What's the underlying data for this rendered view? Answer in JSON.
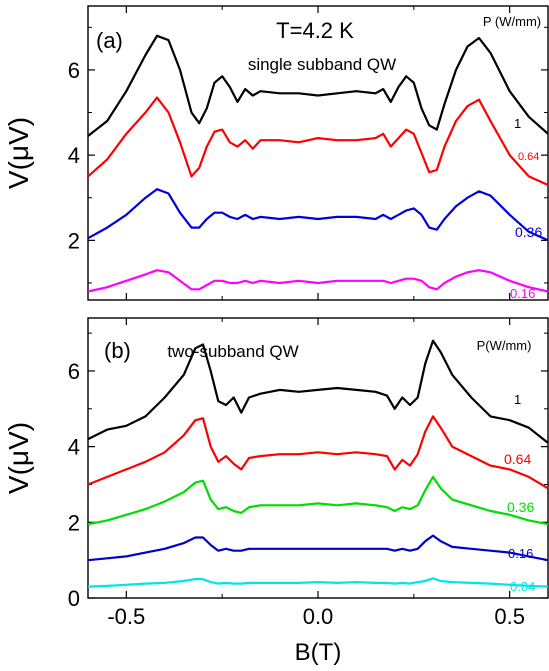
{
  "chart_data": [
    {
      "type": "line",
      "panel_label": "(a)",
      "title": "T=4.2 K",
      "subtitle": "single subband QW",
      "legend_title": "P (W/mm)",
      "xlabel": "",
      "ylabel": "V(μV)",
      "xlim": [
        -0.6,
        0.6
      ],
      "ylim": [
        0.6,
        7.5
      ],
      "yticks": [
        "2",
        "4",
        "6"
      ],
      "ytick_values": [
        2,
        4,
        6
      ],
      "grid": false,
      "series": [
        {
          "name": "1",
          "color": "#000000",
          "x": [
            -0.6,
            -0.55,
            -0.5,
            -0.45,
            -0.42,
            -0.39,
            -0.36,
            -0.33,
            -0.31,
            -0.29,
            -0.27,
            -0.25,
            -0.23,
            -0.21,
            -0.19,
            -0.17,
            -0.15,
            -0.1,
            -0.05,
            0.0,
            0.05,
            0.1,
            0.15,
            0.17,
            0.19,
            0.21,
            0.23,
            0.25,
            0.27,
            0.29,
            0.31,
            0.33,
            0.36,
            0.39,
            0.42,
            0.45,
            0.5,
            0.55,
            0.6
          ],
          "y": [
            4.45,
            4.8,
            5.5,
            6.35,
            6.8,
            6.7,
            6.0,
            5.0,
            4.75,
            5.1,
            5.7,
            5.85,
            5.6,
            5.25,
            5.55,
            5.4,
            5.5,
            5.45,
            5.45,
            5.4,
            5.45,
            5.5,
            5.45,
            5.55,
            5.25,
            5.6,
            5.85,
            5.7,
            5.1,
            4.7,
            4.6,
            5.2,
            6.0,
            6.55,
            6.75,
            6.4,
            5.5,
            4.9,
            4.5
          ]
        },
        {
          "name": "0.64",
          "color": "#ff0000",
          "x": [
            -0.6,
            -0.55,
            -0.5,
            -0.45,
            -0.42,
            -0.39,
            -0.36,
            -0.33,
            -0.31,
            -0.29,
            -0.27,
            -0.25,
            -0.23,
            -0.21,
            -0.19,
            -0.17,
            -0.15,
            -0.1,
            -0.05,
            0.0,
            0.05,
            0.1,
            0.15,
            0.17,
            0.19,
            0.21,
            0.23,
            0.25,
            0.27,
            0.29,
            0.31,
            0.33,
            0.36,
            0.39,
            0.42,
            0.45,
            0.5,
            0.55,
            0.6
          ],
          "y": [
            3.5,
            3.9,
            4.5,
            5.0,
            5.35,
            5.0,
            4.3,
            3.5,
            3.7,
            4.2,
            4.55,
            4.6,
            4.3,
            4.2,
            4.35,
            4.15,
            4.35,
            4.35,
            4.3,
            4.4,
            4.35,
            4.35,
            4.4,
            4.5,
            4.2,
            4.4,
            4.6,
            4.5,
            4.05,
            3.6,
            3.65,
            4.2,
            4.8,
            5.15,
            5.3,
            4.8,
            4.0,
            3.5,
            3.3
          ]
        },
        {
          "name": "0.36",
          "color": "#0000dd",
          "x": [
            -0.6,
            -0.55,
            -0.5,
            -0.45,
            -0.42,
            -0.39,
            -0.36,
            -0.33,
            -0.31,
            -0.29,
            -0.27,
            -0.25,
            -0.23,
            -0.21,
            -0.19,
            -0.17,
            -0.15,
            -0.1,
            -0.05,
            0.0,
            0.05,
            0.1,
            0.15,
            0.17,
            0.19,
            0.21,
            0.23,
            0.25,
            0.27,
            0.29,
            0.31,
            0.33,
            0.36,
            0.39,
            0.42,
            0.45,
            0.5,
            0.55,
            0.6
          ],
          "y": [
            2.05,
            2.3,
            2.6,
            3.0,
            3.2,
            3.1,
            2.65,
            2.3,
            2.3,
            2.5,
            2.65,
            2.65,
            2.55,
            2.5,
            2.6,
            2.5,
            2.55,
            2.5,
            2.55,
            2.5,
            2.55,
            2.55,
            2.5,
            2.6,
            2.5,
            2.6,
            2.7,
            2.75,
            2.6,
            2.3,
            2.25,
            2.5,
            2.8,
            3.0,
            3.15,
            3.05,
            2.6,
            2.2,
            2.0
          ]
        },
        {
          "name": "0.16",
          "color": "#ff00ff",
          "x": [
            -0.6,
            -0.55,
            -0.5,
            -0.45,
            -0.42,
            -0.39,
            -0.36,
            -0.33,
            -0.31,
            -0.29,
            -0.27,
            -0.25,
            -0.23,
            -0.21,
            -0.19,
            -0.17,
            -0.15,
            -0.1,
            -0.05,
            0.0,
            0.05,
            0.1,
            0.15,
            0.17,
            0.19,
            0.21,
            0.23,
            0.25,
            0.27,
            0.29,
            0.31,
            0.33,
            0.36,
            0.39,
            0.42,
            0.45,
            0.5,
            0.55,
            0.6
          ],
          "y": [
            0.8,
            0.9,
            1.05,
            1.2,
            1.3,
            1.25,
            1.05,
            0.85,
            0.85,
            0.95,
            1.05,
            1.05,
            1.0,
            1.0,
            1.05,
            1.0,
            1.05,
            1.0,
            1.05,
            1.0,
            1.05,
            1.05,
            1.05,
            1.05,
            1.0,
            1.05,
            1.1,
            1.1,
            1.05,
            0.9,
            0.85,
            1.0,
            1.15,
            1.25,
            1.3,
            1.25,
            1.05,
            0.9,
            0.8
          ]
        }
      ]
    },
    {
      "type": "line",
      "panel_label": "(b)",
      "subtitle": "two-subband QW",
      "legend_title": "P(W/mm)",
      "xlabel": "B(T)",
      "ylabel": "V(μV)",
      "xlim": [
        -0.6,
        0.6
      ],
      "ylim": [
        0,
        7.4
      ],
      "xticks": [
        "-0.5",
        "0.0",
        "0.5"
      ],
      "xtick_values": [
        -0.5,
        0.0,
        0.5
      ],
      "yticks": [
        "0",
        "2",
        "4",
        "6"
      ],
      "ytick_values": [
        0,
        2,
        4,
        6
      ],
      "grid": false,
      "series": [
        {
          "name": "1",
          "color": "#000000",
          "x": [
            -0.6,
            -0.55,
            -0.5,
            -0.45,
            -0.4,
            -0.35,
            -0.32,
            -0.3,
            -0.28,
            -0.26,
            -0.24,
            -0.22,
            -0.2,
            -0.18,
            -0.15,
            -0.1,
            -0.05,
            0.0,
            0.05,
            0.1,
            0.15,
            0.18,
            0.2,
            0.22,
            0.24,
            0.26,
            0.28,
            0.3,
            0.32,
            0.35,
            0.4,
            0.45,
            0.5,
            0.55,
            0.6
          ],
          "y": [
            4.2,
            4.45,
            4.55,
            4.8,
            5.3,
            5.9,
            6.6,
            6.7,
            6.0,
            5.2,
            5.1,
            5.3,
            4.9,
            5.3,
            5.4,
            5.5,
            5.45,
            5.5,
            5.55,
            5.5,
            5.45,
            5.35,
            5.0,
            5.3,
            5.1,
            5.3,
            6.2,
            6.8,
            6.5,
            5.9,
            5.3,
            4.8,
            4.7,
            4.5,
            4.1
          ]
        },
        {
          "name": "0.64",
          "color": "#ff0000",
          "x": [
            -0.6,
            -0.55,
            -0.5,
            -0.45,
            -0.4,
            -0.35,
            -0.32,
            -0.3,
            -0.28,
            -0.26,
            -0.24,
            -0.22,
            -0.2,
            -0.18,
            -0.15,
            -0.1,
            -0.05,
            0.0,
            0.05,
            0.1,
            0.15,
            0.18,
            0.2,
            0.22,
            0.24,
            0.26,
            0.28,
            0.3,
            0.32,
            0.35,
            0.4,
            0.45,
            0.5,
            0.55,
            0.6
          ],
          "y": [
            3.0,
            3.2,
            3.4,
            3.6,
            3.85,
            4.3,
            4.7,
            4.75,
            4.0,
            3.6,
            3.75,
            3.55,
            3.4,
            3.7,
            3.75,
            3.8,
            3.8,
            3.85,
            3.8,
            3.85,
            3.8,
            3.75,
            3.4,
            3.65,
            3.5,
            3.8,
            4.4,
            4.8,
            4.5,
            4.0,
            3.75,
            3.5,
            3.4,
            3.2,
            2.9
          ]
        },
        {
          "name": "0.36",
          "color": "#00dd00",
          "x": [
            -0.6,
            -0.55,
            -0.5,
            -0.45,
            -0.4,
            -0.35,
            -0.32,
            -0.3,
            -0.28,
            -0.26,
            -0.24,
            -0.22,
            -0.2,
            -0.18,
            -0.15,
            -0.1,
            -0.05,
            0.0,
            0.05,
            0.1,
            0.15,
            0.18,
            0.2,
            0.22,
            0.24,
            0.26,
            0.28,
            0.3,
            0.32,
            0.35,
            0.4,
            0.45,
            0.5,
            0.55,
            0.6
          ],
          "y": [
            1.95,
            2.05,
            2.2,
            2.35,
            2.55,
            2.8,
            3.05,
            3.1,
            2.6,
            2.35,
            2.4,
            2.3,
            2.25,
            2.4,
            2.45,
            2.45,
            2.45,
            2.5,
            2.45,
            2.5,
            2.45,
            2.4,
            2.3,
            2.4,
            2.35,
            2.45,
            2.85,
            3.2,
            2.9,
            2.6,
            2.45,
            2.3,
            2.2,
            2.05,
            1.95
          ]
        },
        {
          "name": "0.16",
          "color": "#0000cc",
          "x": [
            -0.6,
            -0.55,
            -0.5,
            -0.45,
            -0.4,
            -0.35,
            -0.32,
            -0.3,
            -0.28,
            -0.26,
            -0.24,
            -0.22,
            -0.2,
            -0.18,
            -0.15,
            -0.1,
            -0.05,
            0.0,
            0.05,
            0.1,
            0.15,
            0.18,
            0.2,
            0.22,
            0.24,
            0.26,
            0.28,
            0.3,
            0.32,
            0.35,
            0.4,
            0.45,
            0.5,
            0.55,
            0.6
          ],
          "y": [
            1.0,
            1.05,
            1.1,
            1.2,
            1.3,
            1.45,
            1.6,
            1.6,
            1.4,
            1.25,
            1.3,
            1.25,
            1.25,
            1.3,
            1.3,
            1.3,
            1.3,
            1.3,
            1.3,
            1.3,
            1.3,
            1.3,
            1.25,
            1.3,
            1.25,
            1.3,
            1.5,
            1.65,
            1.5,
            1.35,
            1.3,
            1.25,
            1.2,
            1.1,
            1.0
          ]
        },
        {
          "name": "0.04",
          "color": "#00e5e5",
          "x": [
            -0.6,
            -0.55,
            -0.5,
            -0.45,
            -0.4,
            -0.35,
            -0.32,
            -0.3,
            -0.28,
            -0.26,
            -0.24,
            -0.22,
            -0.2,
            -0.18,
            -0.15,
            -0.1,
            -0.05,
            0.0,
            0.05,
            0.1,
            0.15,
            0.18,
            0.2,
            0.22,
            0.24,
            0.26,
            0.28,
            0.3,
            0.32,
            0.35,
            0.4,
            0.45,
            0.5,
            0.55,
            0.6
          ],
          "y": [
            0.3,
            0.32,
            0.35,
            0.38,
            0.4,
            0.45,
            0.5,
            0.5,
            0.42,
            0.38,
            0.4,
            0.38,
            0.38,
            0.4,
            0.4,
            0.4,
            0.4,
            0.42,
            0.4,
            0.42,
            0.4,
            0.4,
            0.38,
            0.4,
            0.38,
            0.42,
            0.45,
            0.52,
            0.45,
            0.42,
            0.4,
            0.38,
            0.35,
            0.32,
            0.3
          ]
        }
      ]
    }
  ]
}
